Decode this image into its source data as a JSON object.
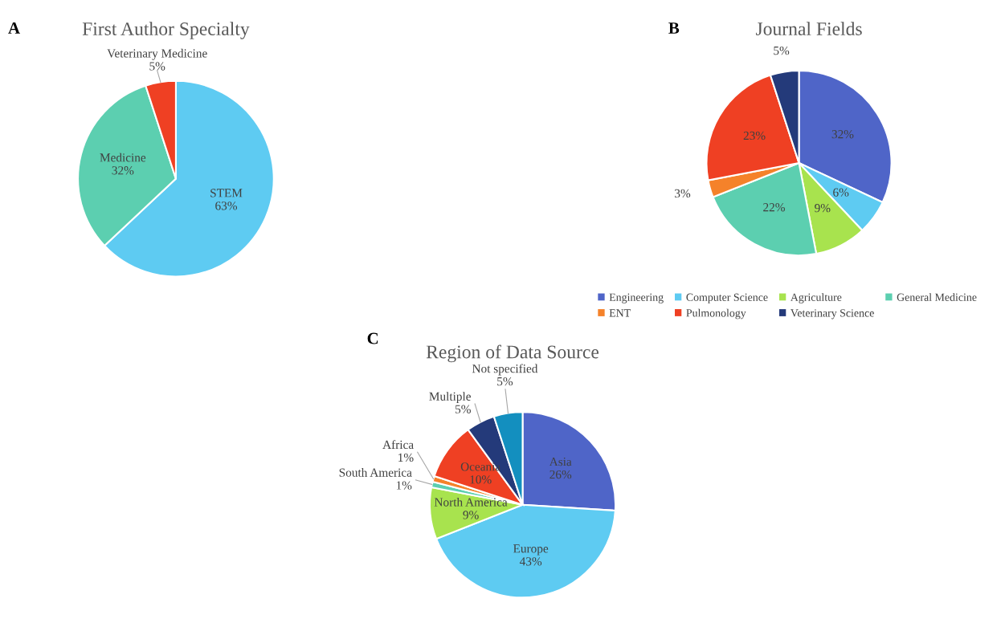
{
  "chart_data": [
    {
      "type": "pie",
      "title": "First Author Specialty",
      "annotations": [
        "A"
      ],
      "categories": [
        "STEM",
        "Medicine",
        "Veterinary Medicine"
      ],
      "values": [
        63,
        32,
        5
      ],
      "value_labels": [
        "63%",
        "32%",
        "5%"
      ],
      "colors": [
        "#5ecbf2",
        "#5ccfb0",
        "#ef4023"
      ],
      "legend": false
    },
    {
      "type": "pie",
      "title": "Journal Fields",
      "annotations": [
        "B"
      ],
      "categories": [
        "Engineering",
        "Computer Science",
        "Agriculture",
        "General Medicine",
        "ENT",
        "Pulmonology",
        "Veterinary Science"
      ],
      "values": [
        32,
        6,
        9,
        22,
        3,
        23,
        5
      ],
      "value_labels": [
        "32%",
        "6%",
        "9%",
        "22%",
        "3%",
        "23%",
        "5%"
      ],
      "colors": [
        "#4f65c8",
        "#5ecbf2",
        "#a8e34e",
        "#5ccfb0",
        "#f5822a",
        "#ef4023",
        "#243a7a"
      ],
      "legend": "bottom"
    },
    {
      "type": "pie",
      "title": "Region of Data Source",
      "annotations": [
        "C"
      ],
      "categories": [
        "Asia",
        "Europe",
        "North America",
        "South America",
        "Africa",
        "Oceania",
        "Multiple",
        "Not specified"
      ],
      "values": [
        26,
        43,
        9,
        1,
        1,
        10,
        5,
        5
      ],
      "value_labels": [
        "26%",
        "43%",
        "9%",
        "1%",
        "1%",
        "10%",
        "5%",
        "5%"
      ],
      "colors": [
        "#4f65c8",
        "#5ecbf2",
        "#a8e34e",
        "#5ccfb0",
        "#f5822a",
        "#ef4023",
        "#243a7a",
        "#138fbf"
      ],
      "legend": false
    }
  ]
}
